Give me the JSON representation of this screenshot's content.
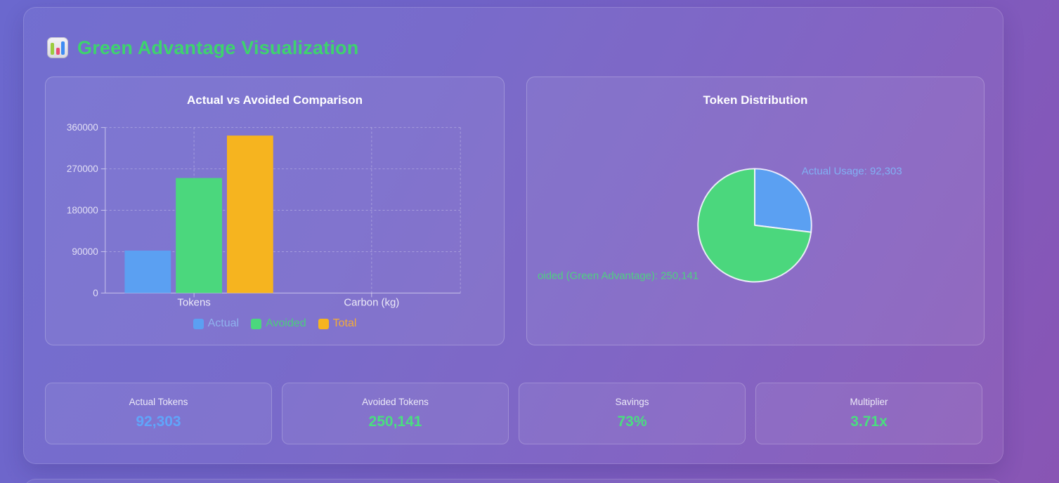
{
  "header": {
    "title": "Green Advantage Visualization",
    "color": "#3ed36e",
    "icon": "bar-chart-emoji"
  },
  "chart_data": [
    {
      "type": "bar",
      "title": "Actual vs Avoided Comparison",
      "categories": [
        "Tokens",
        "Carbon (kg)"
      ],
      "series": [
        {
          "name": "Actual",
          "color": "#5ba0f2",
          "text_color": "#8fb2ee",
          "values": [
            92303,
            0
          ]
        },
        {
          "name": "Avoided",
          "color": "#4bd77d",
          "text_color": "#4bcd7e",
          "values": [
            250141,
            0
          ]
        },
        {
          "name": "Total",
          "color": "#f6b41f",
          "text_color": "#f3ab38",
          "values": [
            342444,
            0
          ]
        }
      ],
      "xlabel": "",
      "ylabel": "",
      "ylim": [
        0,
        360000
      ],
      "yticks": [
        0,
        90000,
        180000,
        270000,
        360000
      ],
      "grid": "dashed",
      "legend_position": "bottom"
    },
    {
      "type": "pie",
      "title": "Token Distribution",
      "start_angle": "top",
      "direction": "clockwise",
      "slices": [
        {
          "label": "Actual Usage: 92,303",
          "value": 92303,
          "color": "#5ba0f2",
          "label_color": "#82b0f4"
        },
        {
          "label": "oided (Green Advantage): 250,141",
          "value": 250141,
          "color": "#4bd77d",
          "label_color": "#4fd080"
        }
      ]
    }
  ],
  "stats": [
    {
      "label": "Actual Tokens",
      "value": "92,303",
      "color": "#60a5fa"
    },
    {
      "label": "Avoided Tokens",
      "value": "250,141",
      "color": "#4ade80"
    },
    {
      "label": "Savings",
      "value": "73%",
      "color": "#4ade80"
    },
    {
      "label": "Multiplier",
      "value": "3.71x",
      "color": "#4ade80"
    }
  ]
}
